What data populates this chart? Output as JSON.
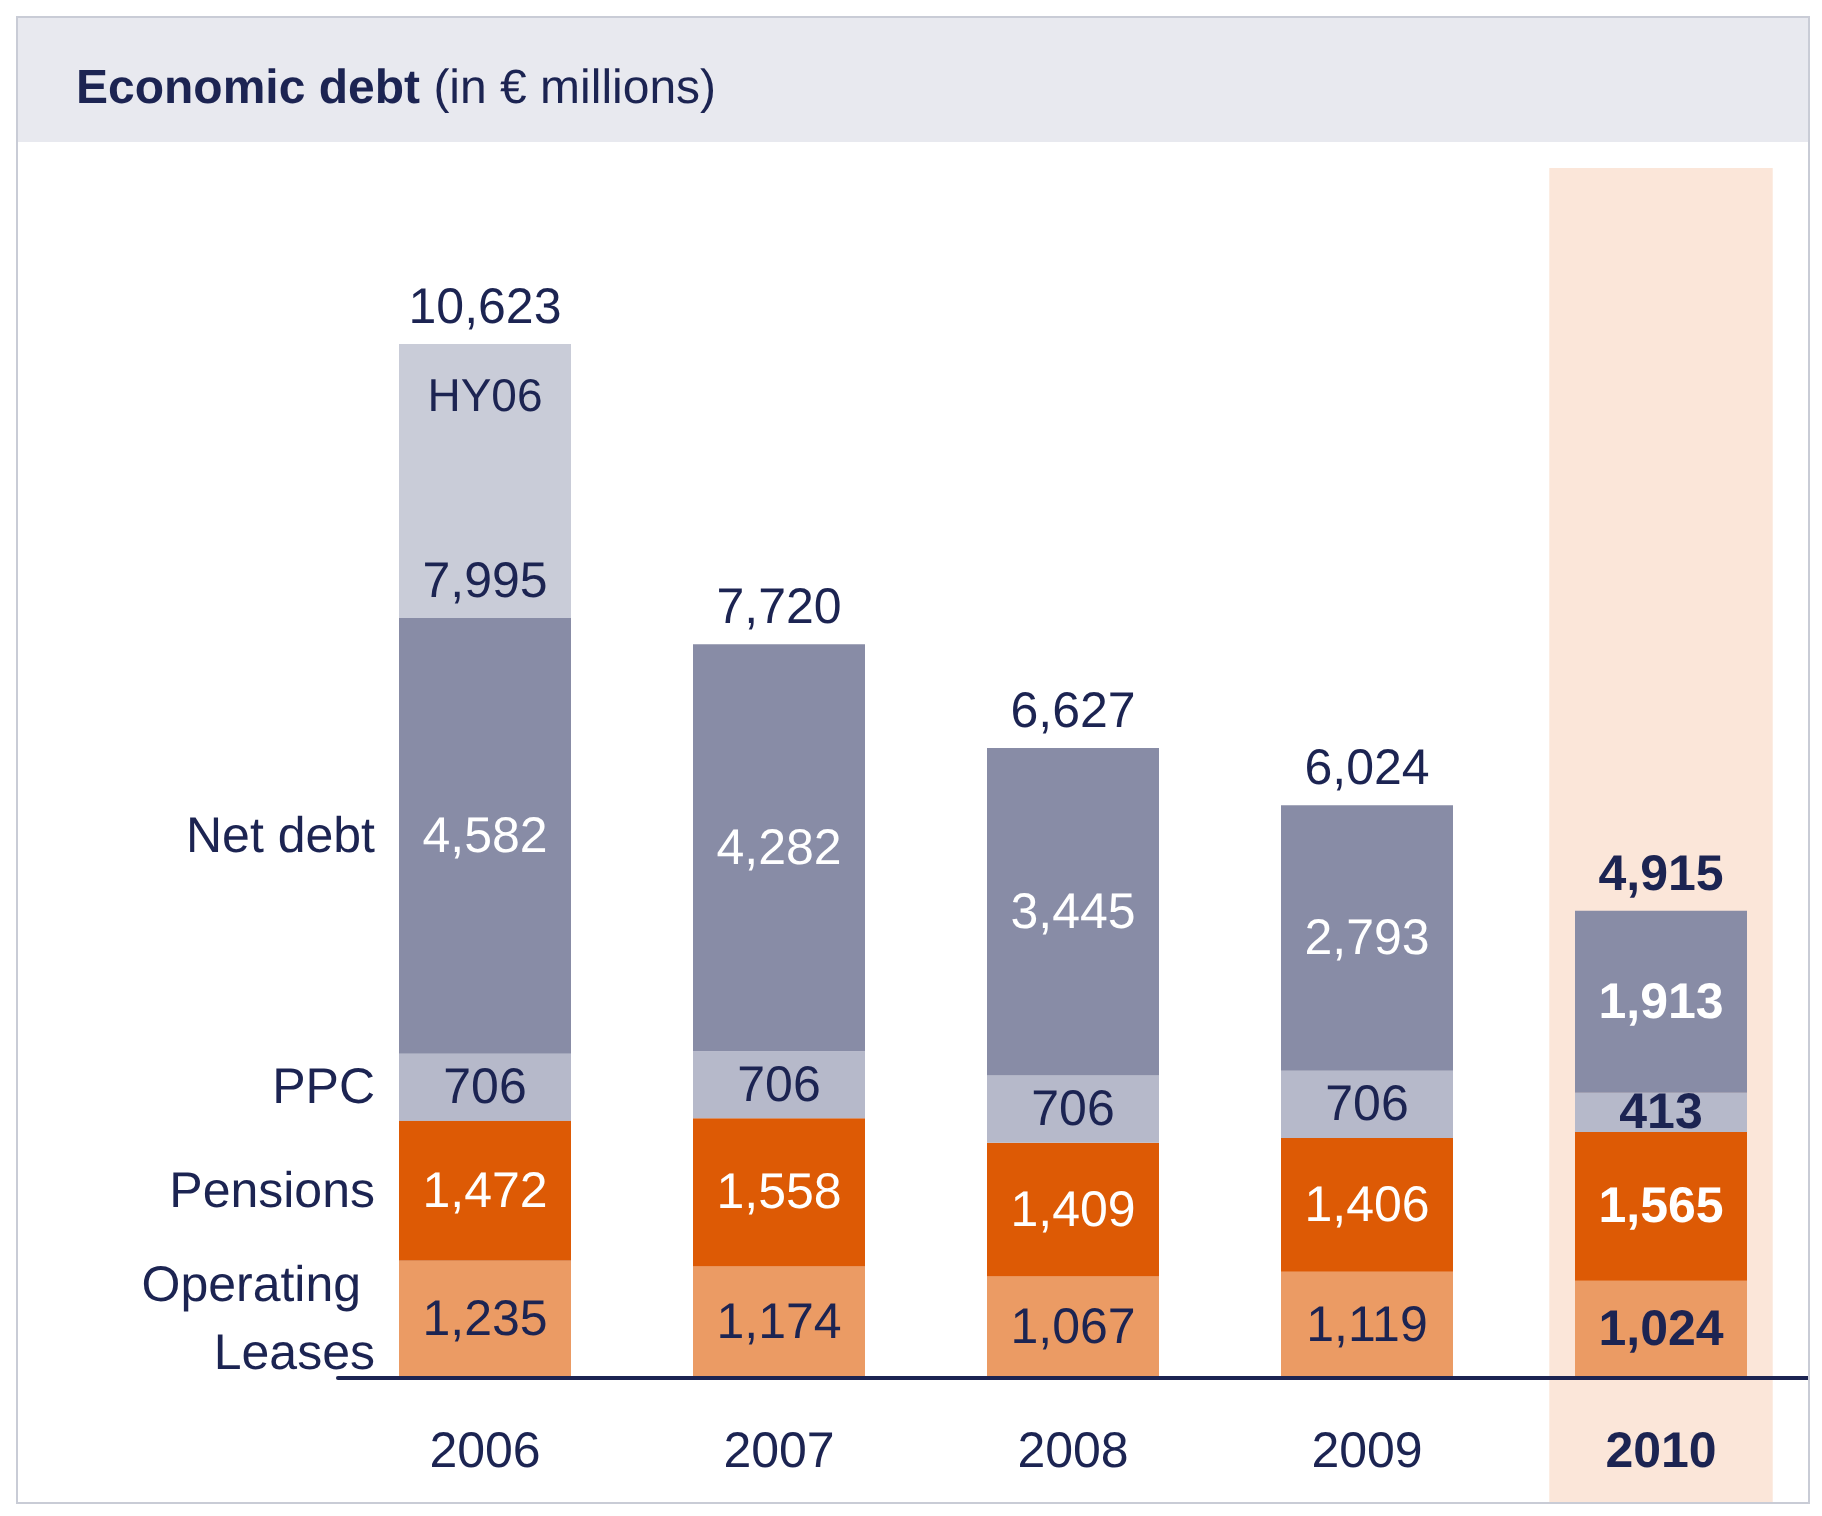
{
  "chart_data": {
    "type": "bar",
    "title": "Economic debt (in € millions)",
    "categories": [
      "2006",
      "2007",
      "2008",
      "2009",
      "2010"
    ],
    "stacked": true,
    "legend": "left",
    "series": [
      {
        "name": "Operating Leases",
        "color": "#eb9b64",
        "values": [
          1235,
          1174,
          1067,
          1119,
          1024
        ],
        "value_labels": [
          "1,235",
          "1,174",
          "1,067",
          "1,119",
          "1,024"
        ]
      },
      {
        "name": "Pensions",
        "color": "#dd5a05",
        "values": [
          1472,
          1558,
          1409,
          1406,
          1565
        ],
        "value_labels": [
          "1,472",
          "1,558",
          "1,409",
          "1,406",
          "1,565"
        ]
      },
      {
        "name": "PPC",
        "color": "#b6b9ca",
        "values": [
          706,
          706,
          706,
          706,
          413
        ],
        "value_labels": [
          "706",
          "706",
          "706",
          "706",
          "413"
        ]
      },
      {
        "name": "Net debt",
        "color": "#888ca6",
        "values": [
          4582,
          4282,
          3445,
          2793,
          1913
        ],
        "value_labels": [
          "4,582",
          "4,282",
          "3,445",
          "2,793",
          "1,913"
        ]
      }
    ],
    "totals": [
      "7,995",
      "7,720",
      "6,627",
      "6,024",
      "4,915"
    ],
    "annotations": [
      "10,623"
    ],
    "bands": [
      {
        "axis": "x",
        "from": "2006",
        "to": "2006",
        "label": "HY06",
        "color": "#c9ccd8"
      },
      {
        "axis": "x",
        "from": "2010",
        "to": "2010",
        "color": "#fbe6d9"
      }
    ]
  }
}
